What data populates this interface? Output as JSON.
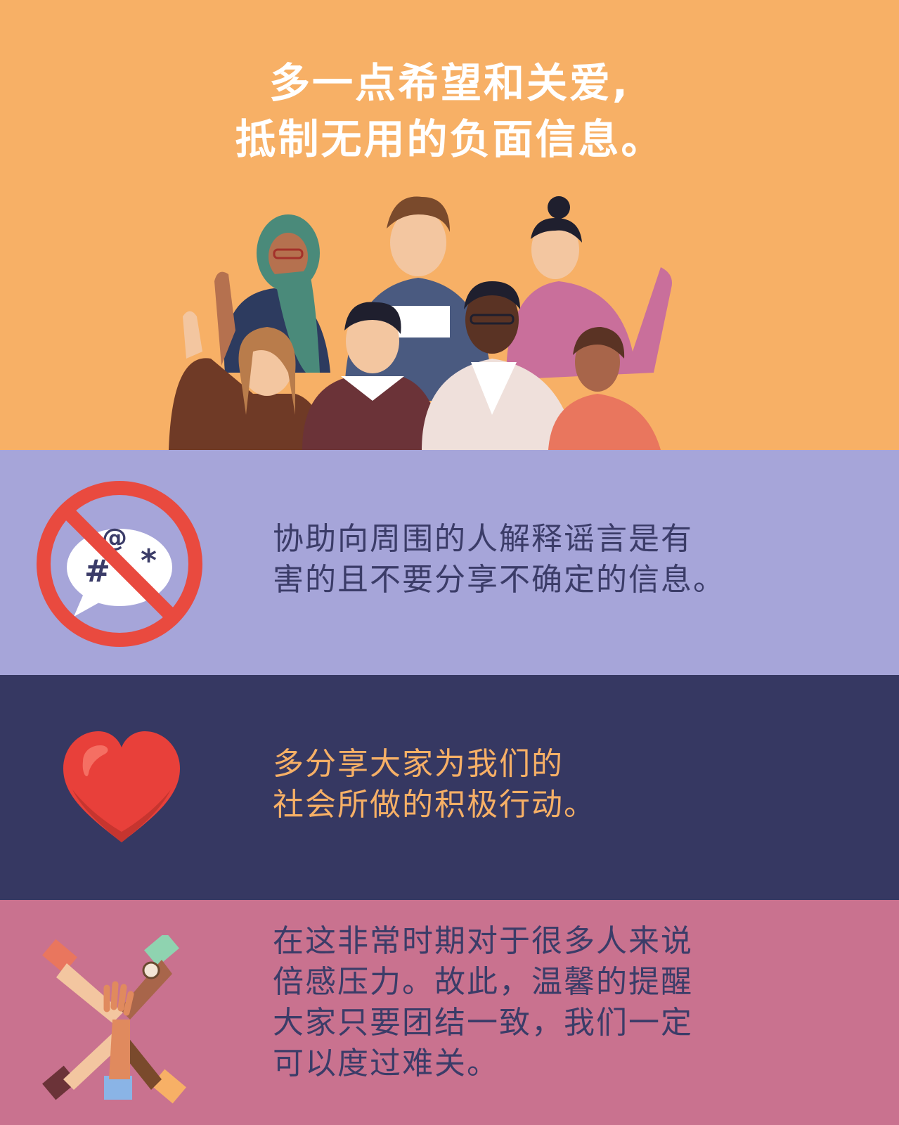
{
  "colors": {
    "hero_bg": "#f7b066",
    "rumor_bg": "#a6a5d9",
    "positive_bg": "#363862",
    "unity_bg": "#c9728f",
    "rumor_text": "#3b3c68",
    "positive_text": "#f7b066",
    "unity_text": "#3b3c68",
    "hero_text": "#ffffff",
    "ban_red": "#e94a3f",
    "heart_red": "#e8403a"
  },
  "hero": {
    "title_line1": "多一点希望和关爱,",
    "title_line2": "抵制无用的负面信息。",
    "illustration": "diverse-group-of-people-waving"
  },
  "rumor": {
    "icon": "no-rumors-icon",
    "bubble_symbols": "@#*",
    "line1": "协助向周围的人解释谣言是有",
    "line2": "害的且不要分享不确定的信息。"
  },
  "positive": {
    "icon": "heart-icon",
    "line1": "多分享大家为我们的",
    "line2": "社会所做的积极行动。"
  },
  "unity": {
    "icon": "stacked-hands-icon",
    "line1": "在这非常时期对于很多人来说",
    "line2": "倍感压力。故此，温馨的提醒",
    "line3": "大家只要团结一致，我们一定",
    "line4": "可以度过难关。"
  }
}
